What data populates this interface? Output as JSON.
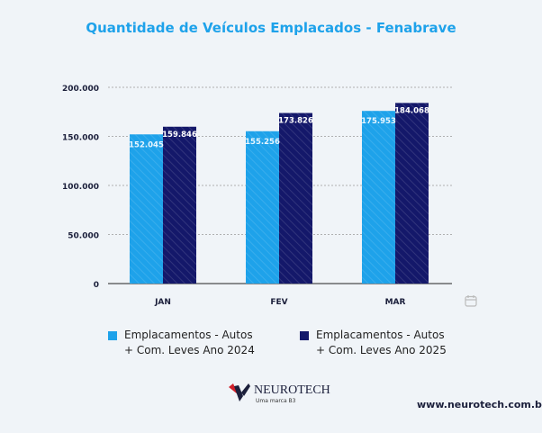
{
  "chart_data": {
    "type": "bar",
    "title": "Quantidade de Veículos Emplacados - Fenabrave",
    "categories": [
      "JAN",
      "FEV",
      "MAR"
    ],
    "series": [
      {
        "name": "Emplacamentos - Autos + Com. Leves Ano 2024",
        "legend_lines": [
          "Emplacamentos - Autos",
          "+ Com. Leves Ano 2024"
        ],
        "color": "#1ea2ea",
        "values": [
          152045,
          155256,
          175953
        ],
        "labels": [
          "152.045",
          "155.256",
          "175.953"
        ]
      },
      {
        "name": "Emplacamentos - Autos + Com. Leves Ano 2025",
        "legend_lines": [
          "Emplacamentos - Autos",
          "+ Com. Leves Ano 2025"
        ],
        "color": "#14186a",
        "values": [
          159846,
          173826,
          184068
        ],
        "labels": [
          "159.846",
          "173.826",
          "184.068"
        ]
      }
    ],
    "ylim": [
      0,
      200000
    ],
    "yticks": [
      0,
      50000,
      100000,
      150000,
      200000
    ],
    "ytick_labels": [
      "0",
      "50.000",
      "100.000",
      "150.000",
      "200.000"
    ],
    "grid": true,
    "legend": "bottom"
  },
  "footer": {
    "brand": "NEUROTECH",
    "tagline": "Uma marca B3",
    "url": "www.neurotech.com.br"
  }
}
